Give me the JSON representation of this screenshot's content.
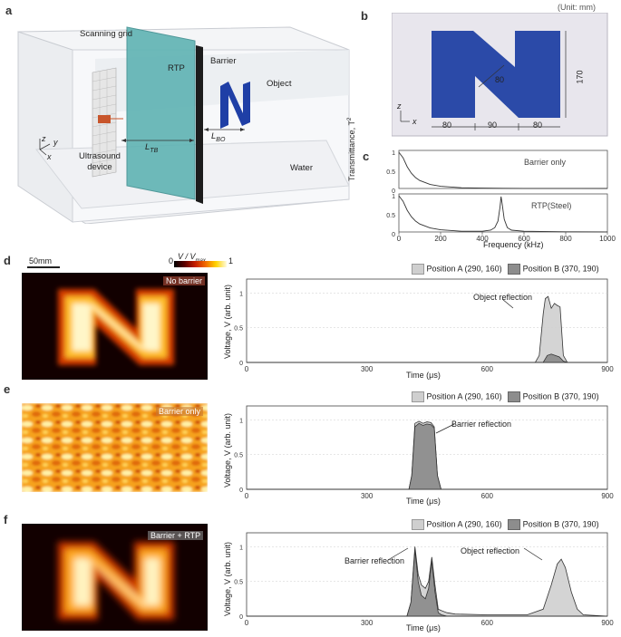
{
  "panels": {
    "a": {
      "letter": "a",
      "labels": {
        "scanning_grid": "Scanning grid",
        "rtp": "RTP",
        "barrier": "Barrier",
        "object": "Object",
        "ultrasound_device_line1": "Ultrasound",
        "ultrasound_device_line2": "device",
        "water": "Water",
        "l_tb": "L",
        "l_tb_sub": "TB",
        "l_bo": "L",
        "l_bo_sub": "BO",
        "axis_z": "z",
        "axis_y": "y",
        "axis_x": "x"
      }
    },
    "b": {
      "letter": "b",
      "unit": "(Unit: mm)",
      "dims": {
        "bottom_left": "80",
        "bottom_mid": "90",
        "bottom_right": "80",
        "diag": "80",
        "height": "170"
      },
      "axis_z": "z",
      "axis_x": "x",
      "color": "#2b4aa8"
    },
    "c": {
      "letter": "c",
      "ylabel": "Transmittance, T",
      "ylabel_sup": "2",
      "xlabel": "Frequency (kHz)",
      "xticks": [
        "0",
        "200",
        "400",
        "600",
        "800",
        "1000"
      ],
      "yticks": [
        "1",
        "0.5",
        "0"
      ],
      "top_label": "Barrier only",
      "bottom_label": "RTP(Steel)"
    },
    "colorbar": {
      "scale": "50mm",
      "label": "V / V",
      "label_sub": "max",
      "min": "0",
      "max": "1"
    },
    "d": {
      "letter": "d",
      "image_tag": "No barrier",
      "legend_a": "Position A (290, 160)",
      "legend_b": "Position B (370, 190)",
      "annotation": "Object reflection"
    },
    "e": {
      "letter": "e",
      "image_tag": "Barrier only",
      "legend_a": "Position A (290, 160)",
      "legend_b": "Position B (370, 190)",
      "annotation": "Barrier reflection"
    },
    "f": {
      "letter": "f",
      "image_tag": "Barrier + RTP",
      "legend_a": "Position A (290, 160)",
      "legend_b": "Position B (370, 190)",
      "annotation_1": "Barrier reflection",
      "annotation_2": "Object reflection"
    },
    "signal_axes": {
      "ylabel": "Voltage, V (arb. unit)",
      "xlabel": "Time (μs)",
      "xticks": [
        "0",
        "300",
        "600",
        "900"
      ],
      "yticks": [
        "1",
        "0.5",
        "0"
      ]
    }
  },
  "chart_data": [
    {
      "type": "line",
      "title": "",
      "xlabel": "Frequency (kHz)",
      "ylabel": "Transmittance, T2",
      "xlim": [
        0,
        1000
      ],
      "ylim": [
        0,
        1
      ],
      "series": [
        {
          "name": "Barrier only",
          "x": [
            0,
            20,
            40,
            60,
            80,
            100,
            150,
            200,
            300,
            400,
            500,
            600,
            800,
            1000
          ],
          "y": [
            1.0,
            0.85,
            0.6,
            0.42,
            0.3,
            0.22,
            0.11,
            0.06,
            0.02,
            0.01,
            0.005,
            0.003,
            0.002,
            0.001
          ]
        }
      ]
    },
    {
      "type": "line",
      "title": "",
      "xlabel": "Frequency (kHz)",
      "ylabel": "Transmittance, T2",
      "xlim": [
        0,
        1000
      ],
      "ylim": [
        0,
        1
      ],
      "series": [
        {
          "name": "RTP(Steel)",
          "x": [
            0,
            20,
            40,
            60,
            80,
            100,
            150,
            200,
            300,
            400,
            440,
            460,
            475,
            485,
            490,
            495,
            505,
            520,
            540,
            600,
            800,
            1000
          ],
          "y": [
            1.0,
            0.85,
            0.6,
            0.42,
            0.3,
            0.22,
            0.11,
            0.06,
            0.02,
            0.02,
            0.05,
            0.12,
            0.3,
            0.7,
            0.98,
            0.8,
            0.35,
            0.12,
            0.05,
            0.02,
            0.005,
            0.002
          ]
        }
      ]
    },
    {
      "type": "area",
      "title": "",
      "xlabel": "Time (μs)",
      "ylabel": "Voltage, V (arb. unit)",
      "xlim": [
        0,
        900
      ],
      "ylim": [
        0,
        1.2
      ],
      "series": [
        {
          "name": "Position A (290, 160)",
          "x": [
            0,
            720,
            730,
            740,
            745,
            752,
            760,
            768,
            775,
            782,
            790,
            800,
            900
          ],
          "y": [
            0,
            0,
            0.1,
            0.7,
            0.92,
            0.95,
            0.78,
            0.85,
            0.82,
            0.8,
            0.1,
            0,
            0
          ]
        },
        {
          "name": "Position B (370, 190)",
          "x": [
            0,
            740,
            750,
            760,
            780,
            790,
            800,
            900
          ],
          "y": [
            0,
            0,
            0.1,
            0.12,
            0.08,
            0.02,
            0,
            0
          ]
        }
      ]
    },
    {
      "type": "area",
      "title": "",
      "xlabel": "Time (μs)",
      "ylabel": "Voltage, V (arb. unit)",
      "xlim": [
        0,
        900
      ],
      "ylim": [
        0,
        1.2
      ],
      "series": [
        {
          "name": "Position A (290, 160)",
          "x": [
            0,
            405,
            412,
            420,
            430,
            440,
            450,
            460,
            468,
            476,
            485,
            900
          ],
          "y": [
            0,
            0,
            0.2,
            0.95,
            0.98,
            0.95,
            0.97,
            0.96,
            0.9,
            0.2,
            0,
            0
          ]
        },
        {
          "name": "Position B (370, 190)",
          "x": [
            0,
            405,
            412,
            420,
            430,
            440,
            450,
            460,
            468,
            476,
            485,
            900
          ],
          "y": [
            0,
            0,
            0.2,
            0.9,
            0.95,
            0.92,
            0.94,
            0.93,
            0.88,
            0.2,
            0,
            0
          ]
        }
      ]
    },
    {
      "type": "area",
      "title": "",
      "xlabel": "Time (μs)",
      "ylabel": "Voltage, V (arb. unit)",
      "xlim": [
        0,
        900
      ],
      "ylim": [
        0,
        1.2
      ],
      "series": [
        {
          "name": "Position A (290, 160)",
          "x": [
            0,
            400,
            410,
            420,
            428,
            436,
            446,
            454,
            462,
            470,
            478,
            486,
            500,
            520,
            600,
            700,
            740,
            760,
            775,
            785,
            795,
            810,
            825,
            840,
            900
          ],
          "y": [
            0,
            0,
            0.2,
            1.0,
            0.6,
            0.45,
            0.4,
            0.5,
            0.85,
            0.45,
            0.1,
            0.08,
            0.05,
            0.03,
            0.02,
            0.02,
            0.1,
            0.45,
            0.75,
            0.82,
            0.7,
            0.35,
            0.1,
            0.02,
            0
          ]
        },
        {
          "name": "Position B (370, 190)",
          "x": [
            0,
            400,
            410,
            420,
            428,
            436,
            446,
            454,
            462,
            470,
            478,
            486,
            500,
            900
          ],
          "y": [
            0,
            0,
            0.2,
            0.95,
            0.5,
            0.3,
            0.25,
            0.4,
            0.8,
            0.35,
            0.05,
            0.02,
            0,
            0
          ]
        }
      ]
    }
  ]
}
